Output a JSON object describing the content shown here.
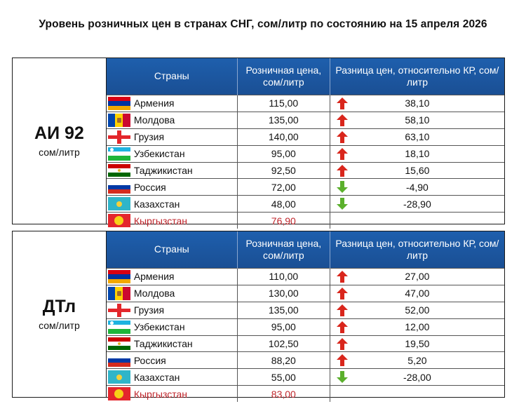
{
  "title": "Уровень розничных цен в странах СНГ, сом/литр по состоянию на 15 апреля 2026",
  "headers": {
    "country": "Страны",
    "price": "Розничная цена, сом/литр",
    "diff": "Разница цен, относительно КР, сом/литр"
  },
  "colors": {
    "header_bg": "#1e5fad",
    "highlight": "#c0272d",
    "up_arrow": "#d9261c",
    "down_arrow": "#5bb02c"
  },
  "blocks": [
    {
      "fuel": "АИ 92",
      "unit": "сом/литр",
      "rows": [
        {
          "flag": "armenia-flag",
          "name": "Армения",
          "price": "115,00",
          "arrow": "up",
          "diff": "38,10"
        },
        {
          "flag": "moldova-flag",
          "name": "Молдова",
          "price": "135,00",
          "arrow": "up",
          "diff": "58,10"
        },
        {
          "flag": "georgia-flag",
          "name": "Грузия",
          "price": "140,00",
          "arrow": "up",
          "diff": "63,10"
        },
        {
          "flag": "uzbekistan-flag",
          "name": "Узбекистан",
          "price": "95,00",
          "arrow": "up",
          "diff": "18,10"
        },
        {
          "flag": "tajikistan-flag",
          "name": "Таджикистан",
          "price": "92,50",
          "arrow": "up",
          "diff": "15,60"
        },
        {
          "flag": "russia-flag",
          "name": "Россия",
          "price": "72,00",
          "arrow": "down",
          "diff": "-4,90"
        },
        {
          "flag": "kazakhstan-flag",
          "name": "Казахстан",
          "price": "48,00",
          "arrow": "down",
          "diff": "-28,90"
        },
        {
          "flag": "kyrgyzstan-flag",
          "name": "Кыргызстан",
          "price": "76,90",
          "arrow": "",
          "diff": "",
          "highlight": true
        }
      ]
    },
    {
      "fuel": "ДТл",
      "unit": "сом/литр",
      "rows": [
        {
          "flag": "armenia-flag",
          "name": "Армения",
          "price": "110,00",
          "arrow": "up",
          "diff": "27,00"
        },
        {
          "flag": "moldova-flag",
          "name": "Молдова",
          "price": "130,00",
          "arrow": "up",
          "diff": "47,00"
        },
        {
          "flag": "georgia-flag",
          "name": "Грузия",
          "price": "135,00",
          "arrow": "up",
          "diff": "52,00"
        },
        {
          "flag": "uzbekistan-flag",
          "name": "Узбекистан",
          "price": "95,00",
          "arrow": "up",
          "diff": "12,00"
        },
        {
          "flag": "tajikistan-flag",
          "name": "Таджикистан",
          "price": "102,50",
          "arrow": "up",
          "diff": "19,50"
        },
        {
          "flag": "russia-flag",
          "name": "Россия",
          "price": "88,20",
          "arrow": "up",
          "diff": "5,20"
        },
        {
          "flag": "kazakhstan-flag",
          "name": "Казахстан",
          "price": "55,00",
          "arrow": "down",
          "diff": "-28,00"
        },
        {
          "flag": "kyrgyzstan-flag",
          "name": "Кыргызстан",
          "price": "83,00",
          "arrow": "",
          "diff": "",
          "highlight": true
        }
      ]
    }
  ]
}
